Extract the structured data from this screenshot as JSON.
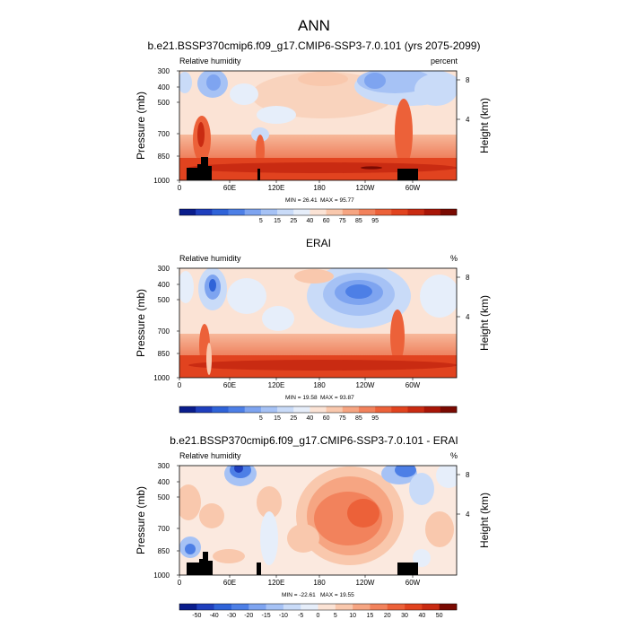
{
  "main_title": "ANN",
  "chart_data": [
    {
      "type": "heatmap",
      "title": "b.e21.BSSP370cmip6.f09_g17.CMIP6-SSP3-7.0.101 (yrs 2075-2099)",
      "left_label": "Relative humidity",
      "right_label": "percent",
      "xlabel": "",
      "ylabel": "Pressure (mb)",
      "ylabel_right": "Height (km)",
      "x_ticks": [
        "0",
        "60E",
        "120E",
        "180",
        "120W",
        "60W"
      ],
      "y_ticks": [
        "300",
        "400",
        "500",
        "700",
        "850",
        "1000"
      ],
      "height_ticks": [
        "8",
        "4"
      ],
      "min_text": "MIN = 26.41",
      "max_text": "MAX = 95.77",
      "min": 26.41,
      "max": 95.77,
      "colorbar_labels": [
        "5",
        "15",
        "25",
        "40",
        "60",
        "75",
        "85",
        "95"
      ],
      "colorbar_colors": [
        "#0a1d8c",
        "#1f3fbd",
        "#2f63d8",
        "#4d7fe6",
        "#7ea4f0",
        "#a6c2f5",
        "#c9dbf8",
        "#e6eefa",
        "#fbe3d5",
        "#f9c8ad",
        "#f6a582",
        "#f2825c",
        "#ec6139",
        "#e1431f",
        "#c92b12",
        "#a81507",
        "#7a0a02"
      ]
    },
    {
      "type": "heatmap",
      "title": "ERAI",
      "left_label": "Relative humidity",
      "right_label": "%",
      "xlabel": "",
      "ylabel": "Pressure (mb)",
      "ylabel_right": "Height (km)",
      "x_ticks": [
        "0",
        "60E",
        "120E",
        "180",
        "120W",
        "60W"
      ],
      "y_ticks": [
        "300",
        "400",
        "500",
        "700",
        "850",
        "1000"
      ],
      "height_ticks": [
        "8",
        "4"
      ],
      "min_text": "MIN = 19.58",
      "max_text": "MAX = 93.87",
      "min": 19.58,
      "max": 93.87,
      "colorbar_labels": [
        "5",
        "15",
        "25",
        "40",
        "60",
        "75",
        "85",
        "95"
      ],
      "colorbar_colors": [
        "#0a1d8c",
        "#1f3fbd",
        "#2f63d8",
        "#4d7fe6",
        "#7ea4f0",
        "#a6c2f5",
        "#c9dbf8",
        "#e6eefa",
        "#fbe3d5",
        "#f9c8ad",
        "#f6a582",
        "#f2825c",
        "#ec6139",
        "#e1431f",
        "#c92b12",
        "#a81507",
        "#7a0a02"
      ]
    },
    {
      "type": "heatmap",
      "title": "b.e21.BSSP370cmip6.f09_g17.CMIP6-SSP3-7.0.101 - ERAI",
      "left_label": "Relative humidity",
      "right_label": "%",
      "xlabel": "",
      "ylabel": "Pressure (mb)",
      "ylabel_right": "Height (km)",
      "x_ticks": [
        "0",
        "60E",
        "120E",
        "180",
        "120W",
        "60W"
      ],
      "y_ticks": [
        "300",
        "400",
        "500",
        "700",
        "850",
        "1000"
      ],
      "height_ticks": [
        "8",
        "4"
      ],
      "min_text": "MIN = -22.61",
      "max_text": "MAX = 19.55",
      "min": -22.61,
      "max": 19.55,
      "colorbar_labels": [
        "-50",
        "-40",
        "-30",
        "-20",
        "-15",
        "-10",
        "-5",
        "0",
        "5",
        "10",
        "15",
        "20",
        "30",
        "40",
        "50"
      ],
      "colorbar_colors": [
        "#0a1d8c",
        "#1f3fbd",
        "#2f63d8",
        "#4d7fe6",
        "#7ea4f0",
        "#a6c2f5",
        "#c9dbf8",
        "#e6eefa",
        "#fbe3d5",
        "#f9c8ad",
        "#f6a582",
        "#f2825c",
        "#ec6139",
        "#e1431f",
        "#c92b12",
        "#7a0a02"
      ]
    }
  ]
}
